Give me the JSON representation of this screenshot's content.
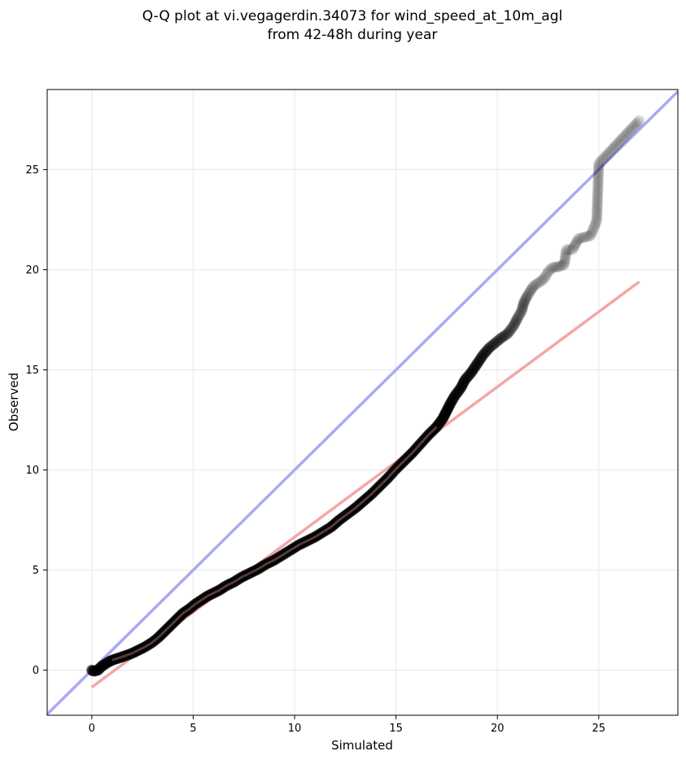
{
  "chart_data": {
    "type": "scatter",
    "title_line1": "Q-Q plot at vi.vegagerdin.34073 for wind_speed_at_10m_agl",
    "title_line2": "from 42-48h during year",
    "xlabel": "Simulated",
    "ylabel": "Observed",
    "xlim": [
      -2.2,
      28.9
    ],
    "ylim": [
      -2.25,
      29.0
    ],
    "xticks": [
      0,
      5,
      10,
      15,
      20,
      25
    ],
    "yticks": [
      0,
      5,
      10,
      15,
      20,
      25
    ],
    "grid": true,
    "colors": {
      "points": "#000000",
      "identity_line": "#aaaaf2",
      "fit_line": "#f4a6a6",
      "grid": "#ebebeb"
    },
    "identity_line": {
      "x": [
        -2.2,
        28.9
      ],
      "y": [
        -2.2,
        28.9
      ]
    },
    "fit_line": {
      "x": [
        0.0,
        27.0
      ],
      "y": [
        -0.85,
        19.4
      ]
    },
    "series": [
      {
        "points": [
          [
            0.0,
            0.0
          ],
          [
            0.1,
            -0.05
          ],
          [
            0.3,
            0.0
          ],
          [
            0.5,
            0.2
          ],
          [
            0.8,
            0.4
          ],
          [
            1.0,
            0.5
          ],
          [
            1.3,
            0.6
          ],
          [
            1.6,
            0.7
          ],
          [
            2.0,
            0.85
          ],
          [
            2.3,
            1.0
          ],
          [
            2.6,
            1.15
          ],
          [
            3.0,
            1.4
          ],
          [
            3.3,
            1.65
          ],
          [
            3.6,
            1.95
          ],
          [
            3.9,
            2.25
          ],
          [
            4.2,
            2.55
          ],
          [
            4.5,
            2.85
          ],
          [
            4.8,
            3.05
          ],
          [
            5.1,
            3.3
          ],
          [
            5.4,
            3.5
          ],
          [
            5.7,
            3.7
          ],
          [
            6.0,
            3.85
          ],
          [
            6.3,
            4.0
          ],
          [
            6.6,
            4.2
          ],
          [
            7.0,
            4.4
          ],
          [
            7.4,
            4.65
          ],
          [
            7.8,
            4.85
          ],
          [
            8.2,
            5.05
          ],
          [
            8.6,
            5.3
          ],
          [
            9.0,
            5.5
          ],
          [
            9.4,
            5.75
          ],
          [
            9.8,
            6.0
          ],
          [
            10.2,
            6.25
          ],
          [
            10.6,
            6.45
          ],
          [
            11.0,
            6.65
          ],
          [
            11.4,
            6.9
          ],
          [
            11.8,
            7.15
          ],
          [
            12.2,
            7.5
          ],
          [
            12.6,
            7.8
          ],
          [
            13.0,
            8.1
          ],
          [
            13.4,
            8.45
          ],
          [
            13.8,
            8.8
          ],
          [
            14.2,
            9.2
          ],
          [
            14.6,
            9.6
          ],
          [
            15.0,
            10.05
          ],
          [
            15.4,
            10.45
          ],
          [
            15.8,
            10.85
          ],
          [
            16.2,
            11.3
          ],
          [
            16.6,
            11.75
          ],
          [
            17.0,
            12.15
          ],
          [
            17.3,
            12.55
          ],
          [
            17.5,
            12.95
          ],
          [
            17.7,
            13.35
          ],
          [
            17.9,
            13.7
          ],
          [
            18.2,
            14.1
          ],
          [
            18.4,
            14.5
          ],
          [
            18.7,
            14.85
          ],
          [
            19.0,
            15.3
          ],
          [
            19.3,
            15.75
          ],
          [
            19.6,
            16.1
          ],
          [
            19.9,
            16.35
          ],
          [
            20.2,
            16.6
          ],
          [
            20.5,
            16.8
          ],
          [
            20.8,
            17.2
          ],
          [
            21.0,
            17.6
          ],
          [
            21.2,
            17.95
          ],
          [
            21.3,
            18.35
          ],
          [
            21.45,
            18.65
          ],
          [
            21.6,
            18.9
          ],
          [
            21.8,
            19.2
          ],
          [
            22.1,
            19.4
          ],
          [
            22.3,
            19.55
          ],
          [
            22.5,
            19.9
          ],
          [
            22.7,
            20.1
          ],
          [
            23.0,
            20.15
          ],
          [
            23.3,
            20.25
          ],
          [
            23.4,
            21.0
          ],
          [
            23.7,
            21.0
          ],
          [
            24.0,
            21.55
          ],
          [
            24.6,
            21.7
          ],
          [
            24.9,
            22.45
          ],
          [
            25.0,
            25.3
          ],
          [
            27.0,
            27.45
          ]
        ]
      }
    ]
  }
}
